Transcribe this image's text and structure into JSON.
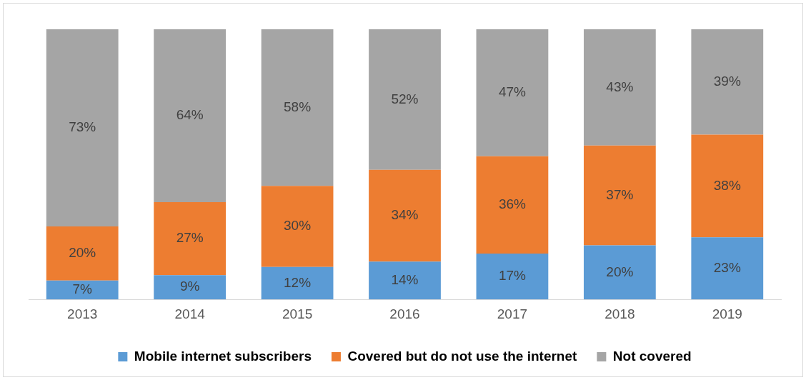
{
  "chart_data": {
    "type": "bar",
    "stacked": true,
    "legend": "bottom",
    "grid": false,
    "categories": [
      "2013",
      "2014",
      "2015",
      "2016",
      "2017",
      "2018",
      "2019"
    ],
    "series": [
      {
        "name": "Mobile internet subscribers",
        "color": "#5b9bd5",
        "values": [
          7,
          9,
          12,
          14,
          17,
          20,
          23
        ],
        "value_labels": [
          "7%",
          "9%",
          "12%",
          "14%",
          "17%",
          "20%",
          "23%"
        ]
      },
      {
        "name": "Covered but do not use the internet",
        "color": "#ed7d31",
        "values": [
          20,
          27,
          30,
          34,
          36,
          37,
          38
        ],
        "value_labels": [
          "20%",
          "27%",
          "30%",
          "34%",
          "36%",
          "37%",
          "38%"
        ]
      },
      {
        "name": "Not covered",
        "color": "#a5a5a5",
        "values": [
          73,
          64,
          58,
          52,
          47,
          43,
          39
        ],
        "value_labels": [
          "73%",
          "64%",
          "58%",
          "52%",
          "47%",
          "43%",
          "39%"
        ]
      }
    ]
  }
}
